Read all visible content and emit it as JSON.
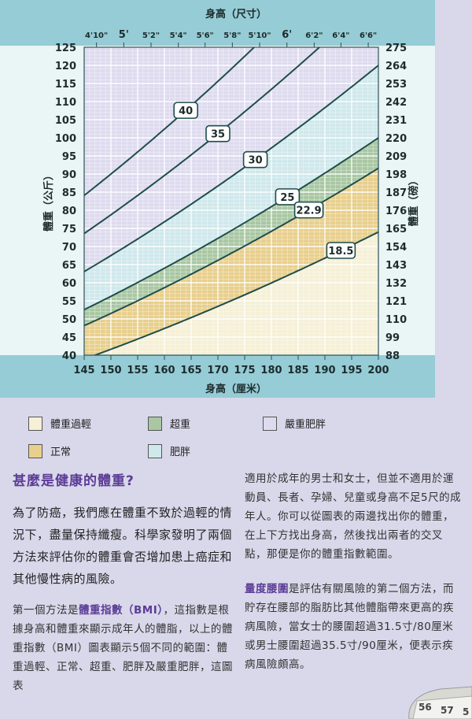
{
  "chart_data": {
    "type": "area",
    "title": "",
    "x_top_label": "身高（尺寸）",
    "x_bottom_label": "身高（厘米）",
    "y_left_label": "體重（公斤）",
    "y_right_label": "體重（磅）",
    "xlim": [
      145,
      200
    ],
    "ylim": [
      40,
      125
    ],
    "x_ticks": [
      145,
      150,
      155,
      160,
      165,
      170,
      175,
      180,
      185,
      190,
      195,
      200
    ],
    "y_ticks": [
      40,
      45,
      50,
      55,
      60,
      65,
      70,
      75,
      80,
      85,
      90,
      95,
      100,
      105,
      110,
      115,
      120,
      125
    ],
    "top_ticks": [
      {
        "label": "4'10\"",
        "cm": 147.3
      },
      {
        "label": "5'",
        "cm": 152.4
      },
      {
        "label": "5'2\"",
        "cm": 157.5
      },
      {
        "label": "5'4\"",
        "cm": 162.6
      },
      {
        "label": "5'6\"",
        "cm": 167.6
      },
      {
        "label": "5'8\"",
        "cm": 172.7
      },
      {
        "label": "5'10\"",
        "cm": 177.8
      },
      {
        "label": "6'",
        "cm": 182.9
      },
      {
        "label": "6'2\"",
        "cm": 188.0
      },
      {
        "label": "6'4\"",
        "cm": 193.0
      },
      {
        "label": "6'6\"",
        "cm": 198.1
      }
    ],
    "right_ticks": [
      "275",
      "264",
      "253",
      "242",
      "231",
      "220",
      "209",
      "198",
      "187",
      "176",
      "165",
      "154",
      "143",
      "132",
      "121",
      "110",
      "99",
      "88"
    ],
    "bmi_curves": [
      {
        "bmi": 40,
        "label": "40",
        "label_x": 164
      },
      {
        "bmi": 35,
        "label": "35",
        "label_x": 170
      },
      {
        "bmi": 30,
        "label": "30",
        "label_x": 177
      },
      {
        "bmi": 25,
        "label": "25",
        "label_x": 183
      },
      {
        "bmi": 22.9,
        "label": "22.9",
        "label_x": 187
      },
      {
        "bmi": 18.5,
        "label": "18.5",
        "label_x": 193
      }
    ],
    "bands": [
      {
        "name": "體重過輕",
        "from": 0,
        "to": 18.5,
        "color": "#f5f0d6"
      },
      {
        "name": "正常",
        "from": 18.5,
        "to": 22.9,
        "color": "#e8cf8c"
      },
      {
        "name": "超重",
        "from": 22.9,
        "to": 25,
        "color": "#a8c7a2"
      },
      {
        "name": "肥胖",
        "from": 25,
        "to": 30,
        "color": "#cfe8ec"
      },
      {
        "name": "嚴重肥胖",
        "from": 30,
        "to": 100,
        "color": "#dedbef"
      }
    ]
  },
  "legend": {
    "underweight": "體重過輕",
    "overweight": "超重",
    "severe": "嚴重肥胖",
    "normal": "正常",
    "obese": "肥胖"
  },
  "text": {
    "heading": "甚麼是健康的體重?",
    "intro": "為了防癌，我們應在體重不致於過輕的情況下，盡量保持纖瘦。科學家發明了兩個方法來評估你的體重會否增加患上癌症和其他慢性病的風險。",
    "p1_pre": "第一個方法是",
    "p1_hl": "體重指數（BMI）",
    "p1_post": "，這指數是根據身高和體重來顯示成年人的體脂，以上的體重指數（BMI）圖表顯示5個不同的範圍：體重過輕、正常、超重、肥胖及嚴重肥胖，這圖表",
    "p2": "適用於成年的男士和女士，但並不適用於運動員、長者、孕婦、兒童或身高不足5尺的成年人。你可以從圖表的兩邊找出你的體重，在上下方找出身高，然後找出兩者的交叉點，那便是你的體重指數範圍。",
    "p3_hl": "量度腰圍",
    "p3_post": "是評估有關風險的第二個方法，而貯存在腰部的脂肪比其他體脂帶來更高的疾病風險，當女士的腰圍超過31.5寸/80厘米或男士腰圍超過35.5寸/90厘米，便表示疾病風險頗高。"
  },
  "tape": {
    "n1": "56",
    "n2": "57",
    "n3": "5"
  }
}
